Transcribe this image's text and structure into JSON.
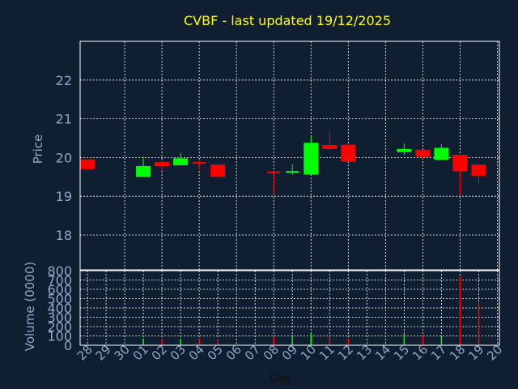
{
  "chart_data": [
    {
      "type": "candlestick",
      "title": "CVBF - last updated 19/12/2025",
      "ylabel": "Price",
      "ylim": [
        17.1,
        23
      ],
      "yticks": [
        18,
        19,
        20,
        21,
        22
      ],
      "grid": true,
      "colors": {
        "up": "#00ff00",
        "down": "#ff0000",
        "title": "#ffff00",
        "axis_text": "#8fa8c8",
        "background": "#0f1f31",
        "grid": "#ffffff"
      },
      "candles": [
        {
          "day": "28",
          "open": 19.95,
          "close": 19.7,
          "high": 19.95,
          "low": 19.7
        },
        {
          "day": "01",
          "open": 19.5,
          "close": 19.78,
          "high": 20.02,
          "low": 19.5
        },
        {
          "day": "02",
          "open": 19.88,
          "close": 19.78,
          "high": 19.9,
          "low": 19.65
        },
        {
          "day": "03",
          "open": 19.8,
          "close": 19.98,
          "high": 20.12,
          "low": 19.8
        },
        {
          "day": "04",
          "open": 19.88,
          "close": 19.84,
          "high": 19.92,
          "low": 19.68
        },
        {
          "day": "05",
          "open": 19.82,
          "close": 19.5,
          "high": 19.82,
          "low": 19.5
        },
        {
          "day": "08",
          "open": 19.64,
          "close": 19.62,
          "high": 19.64,
          "low": 19.05
        },
        {
          "day": "09",
          "open": 19.62,
          "close": 19.65,
          "high": 19.82,
          "low": 19.55
        },
        {
          "day": "10",
          "open": 19.56,
          "close": 20.38,
          "high": 20.55,
          "low": 19.56
        },
        {
          "day": "11",
          "open": 20.32,
          "close": 20.22,
          "high": 20.68,
          "low": 20.2
        },
        {
          "day": "12",
          "open": 20.33,
          "close": 19.9,
          "high": 20.33,
          "low": 19.9
        },
        {
          "day": "15",
          "open": 20.14,
          "close": 20.22,
          "high": 20.36,
          "low": 20.06
        },
        {
          "day": "16",
          "open": 20.2,
          "close": 20.02,
          "high": 20.2,
          "low": 19.96
        },
        {
          "day": "17",
          "open": 19.94,
          "close": 20.25,
          "high": 20.34,
          "low": 19.94
        },
        {
          "day": "18",
          "open": 20.07,
          "close": 19.65,
          "high": 20.07,
          "low": 19.04
        },
        {
          "day": "19",
          "open": 19.82,
          "close": 19.53,
          "high": 19.82,
          "low": 19.33
        }
      ]
    },
    {
      "type": "bar",
      "xlabel": "Day",
      "ylabel": "Volume (0000)",
      "ylim": [
        0,
        800
      ],
      "yticks": [
        0,
        100,
        200,
        300,
        400,
        500,
        600,
        700,
        800
      ],
      "categories": [
        "28",
        "29",
        "30",
        "01",
        "02",
        "03",
        "04",
        "05",
        "06",
        "07",
        "08",
        "09",
        "10",
        "11",
        "12",
        "13",
        "14",
        "15",
        "16",
        "17",
        "18",
        "19",
        "20"
      ],
      "bars": [
        {
          "day": "28",
          "value": 0,
          "direction": "down"
        },
        {
          "day": "01",
          "value": 75,
          "direction": "up"
        },
        {
          "day": "02",
          "value": 70,
          "direction": "down"
        },
        {
          "day": "03",
          "value": 70,
          "direction": "up"
        },
        {
          "day": "04",
          "value": 75,
          "direction": "down"
        },
        {
          "day": "05",
          "value": 65,
          "direction": "down"
        },
        {
          "day": "08",
          "value": 95,
          "direction": "down"
        },
        {
          "day": "09",
          "value": 110,
          "direction": "up"
        },
        {
          "day": "10",
          "value": 120,
          "direction": "up"
        },
        {
          "day": "11",
          "value": 95,
          "direction": "down"
        },
        {
          "day": "12",
          "value": 75,
          "direction": "down"
        },
        {
          "day": "15",
          "value": 120,
          "direction": "up"
        },
        {
          "day": "16",
          "value": 100,
          "direction": "down"
        },
        {
          "day": "17",
          "value": 90,
          "direction": "up"
        },
        {
          "day": "18",
          "value": 740,
          "direction": "down"
        },
        {
          "day": "19",
          "value": 460,
          "direction": "down"
        }
      ]
    }
  ]
}
